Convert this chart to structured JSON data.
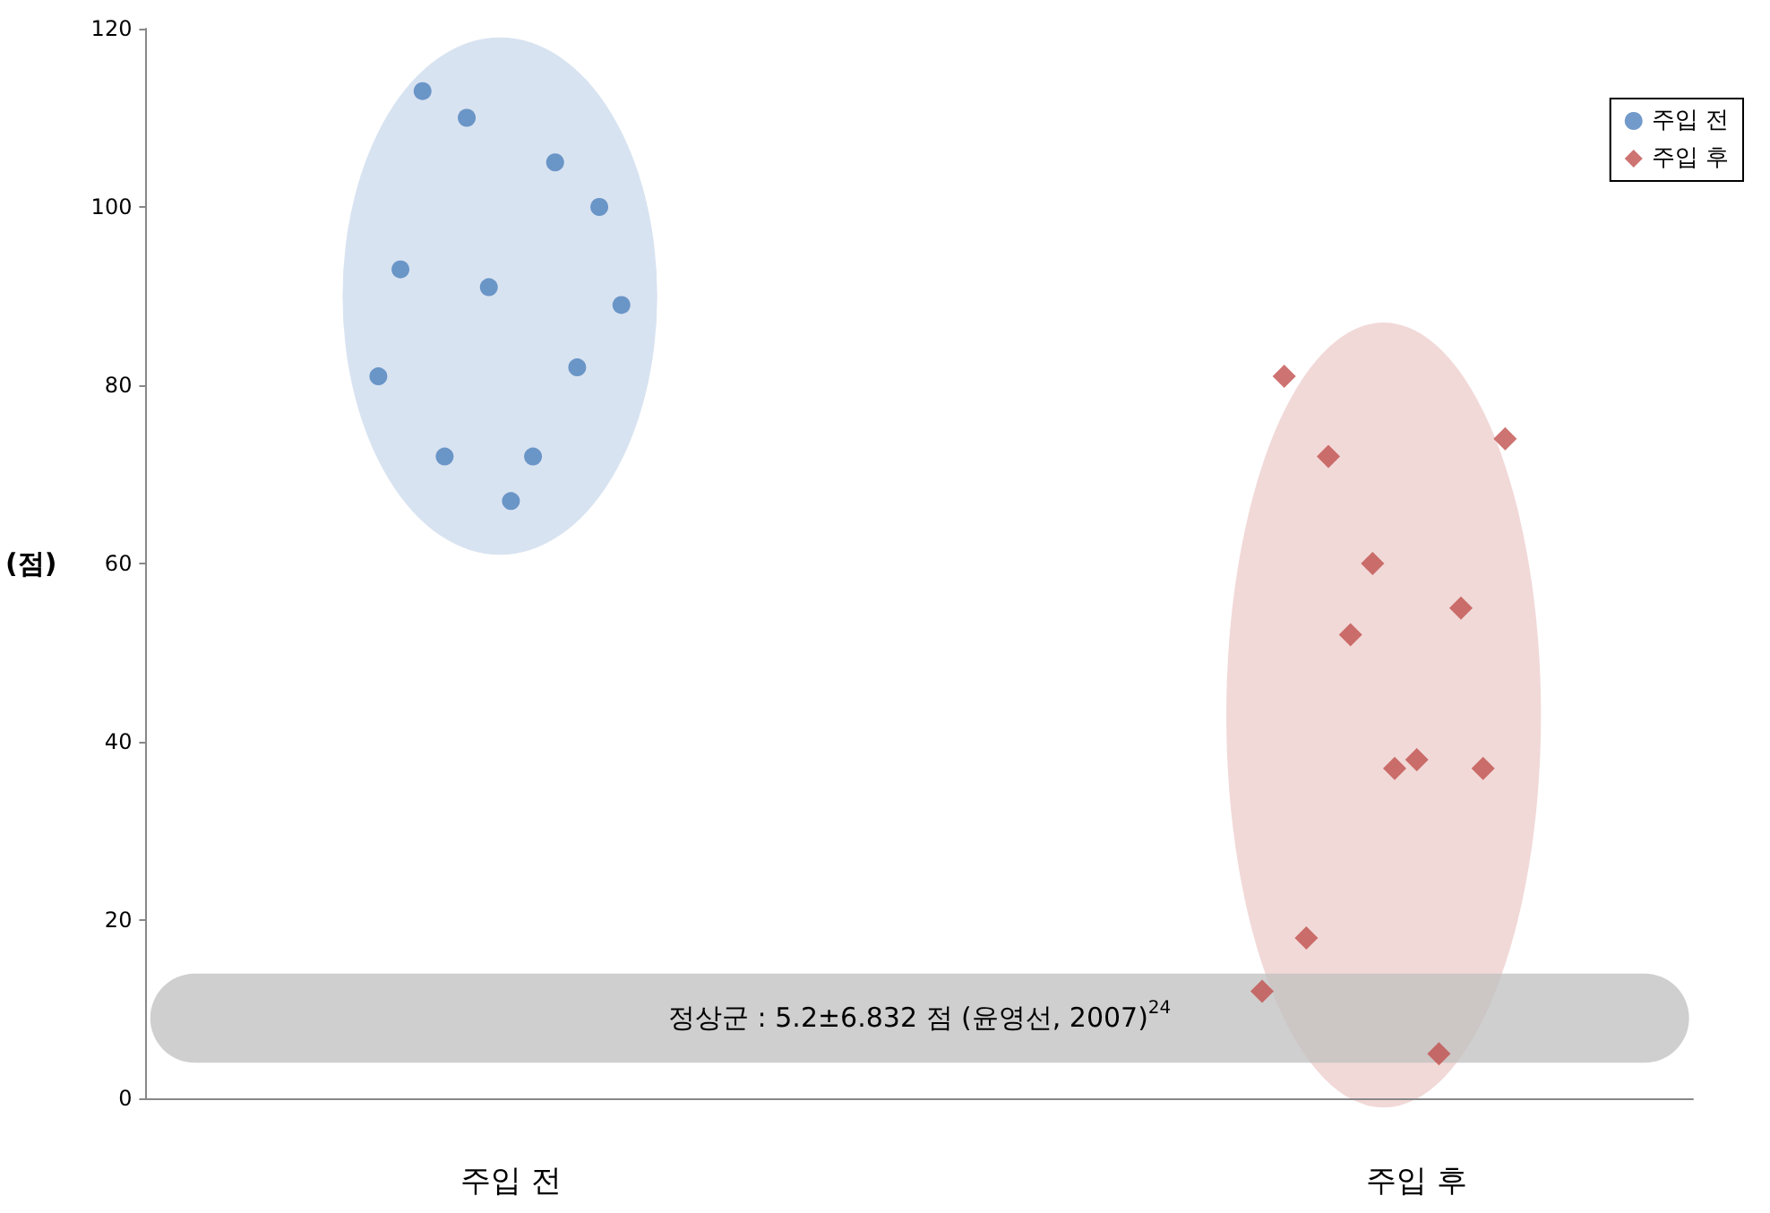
{
  "chart_data": {
    "type": "scatter",
    "ylabel": "(점)",
    "categories": [
      null,
      null,
      null,
      null,
      null,
      null,
      null,
      null,
      null,
      null,
      null,
      null,
      null,
      null,
      null,
      null,
      "주입 전",
      null,
      null,
      null,
      null,
      null,
      null,
      null,
      null,
      null,
      null,
      null,
      null,
      null,
      null,
      null,
      null,
      null,
      null,
      null,
      null,
      null,
      null,
      null,
      null,
      null,
      null,
      null,
      null,
      null,
      null,
      null,
      null,
      null,
      null,
      null,
      null,
      null,
      null,
      null,
      null,
      "주입 후",
      null,
      null,
      null,
      null,
      null,
      null,
      null,
      null,
      null,
      null,
      null,
      null
    ],
    "ylim": [
      0,
      120
    ],
    "yticks": [
      0,
      20,
      40,
      60,
      80,
      100,
      120
    ],
    "grid": false,
    "legend": "top right",
    "series": [
      {
        "name": "주입 전",
        "color": "#4f81bd",
        "marker": "circle",
        "values": [
          null,
          null,
          null,
          null,
          null,
          null,
          null,
          null,
          null,
          null,
          81,
          93,
          113,
          72,
          110,
          91,
          67,
          72,
          105,
          82,
          100,
          89,
          null,
          null,
          null,
          null,
          null,
          null,
          null,
          null,
          null,
          null,
          null,
          null,
          null,
          null,
          null,
          null,
          null,
          null,
          null,
          null,
          null,
          null,
          null,
          null,
          null,
          null,
          null,
          null,
          null,
          null,
          null,
          null,
          null,
          null,
          null,
          null,
          null,
          null,
          null,
          null,
          null,
          null,
          null,
          null,
          null,
          null,
          null,
          null
        ]
      },
      {
        "name": "주입 후",
        "color": "#c0504d",
        "marker": "diamond",
        "values": [
          null,
          null,
          null,
          null,
          null,
          null,
          null,
          null,
          null,
          null,
          null,
          null,
          null,
          null,
          null,
          null,
          null,
          null,
          null,
          null,
          null,
          null,
          null,
          null,
          null,
          null,
          null,
          null,
          null,
          null,
          null,
          null,
          null,
          null,
          null,
          null,
          null,
          null,
          null,
          null,
          null,
          null,
          null,
          null,
          null,
          null,
          null,
          null,
          null,
          null,
          12,
          81,
          18,
          72,
          52,
          60,
          37,
          38,
          5,
          55,
          37,
          74,
          null,
          null,
          null,
          null,
          null,
          null,
          null,
          null
        ]
      }
    ],
    "bands": [
      {
        "axis": "y",
        "from": 4,
        "to": 14,
        "color": "#bfbfbf",
        "label": "정상군 : 5.2±6.832 점 (윤영선, 2007)$^{24}$"
      }
    ]
  }
}
